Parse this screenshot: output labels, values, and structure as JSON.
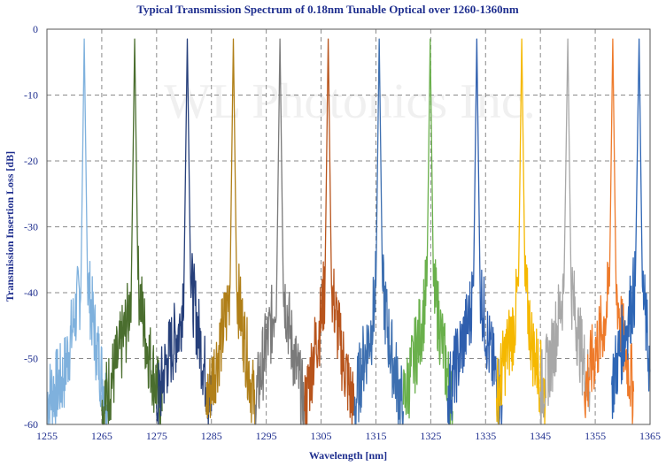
{
  "chart_data": {
    "type": "line",
    "title": "Typical Transmission  Spectrum of 0.18nm Tunable Optical over 1260-1360nm",
    "xlabel": "Wavelength [nm]",
    "ylabel": "Transmission Insertion Loss [dB]",
    "xlim": [
      1255,
      1365
    ],
    "ylim": [
      -60,
      0
    ],
    "xticks": [
      1255,
      1265,
      1275,
      1285,
      1295,
      1305,
      1315,
      1325,
      1335,
      1345,
      1355,
      1365
    ],
    "yticks": [
      0,
      -10,
      -20,
      -30,
      -40,
      -50,
      -60
    ],
    "grid": true,
    "legend": "none",
    "watermark": "WL Photonics Inc.",
    "series": [
      {
        "color": "#7fb1dd",
        "x": [
          1255,
          1258,
          1260,
          1261.2,
          1261.8,
          1262.4,
          1264,
          1266
        ],
        "y": [
          -56,
          -53,
          -44,
          -39,
          -1.5,
          -38,
          -48,
          -57
        ]
      },
      {
        "color": "#4a6e2e",
        "x": [
          1265,
          1268,
          1269.8,
          1270.4,
          1271.0,
          1271.6,
          1273,
          1276
        ],
        "y": [
          -58,
          -50,
          -44,
          -38,
          -1.5,
          -38,
          -47,
          -58
        ]
      },
      {
        "color": "#263f7a",
        "x": [
          1275,
          1277,
          1279.3,
          1280.0,
          1280.6,
          1281.2,
          1283,
          1285
        ],
        "y": [
          -57,
          -50,
          -45,
          -38,
          -1.5,
          -38,
          -48,
          -58
        ]
      },
      {
        "color": "#b07f18",
        "x": [
          1284,
          1286,
          1287.8,
          1288.4,
          1289.0,
          1289.6,
          1291,
          1293
        ],
        "y": [
          -57,
          -50,
          -43,
          -39,
          -1.5,
          -39,
          -47,
          -58
        ]
      },
      {
        "color": "#7a7a7a",
        "x": [
          1293,
          1294.5,
          1296.2,
          1296.9,
          1297.5,
          1298.1,
          1299.5,
          1302
        ],
        "y": [
          -57,
          -50,
          -44,
          -39,
          -1.5,
          -39,
          -47,
          -58
        ]
      },
      {
        "color": "#b8541c",
        "x": [
          1302,
          1303.5,
          1305.0,
          1305.7,
          1306.3,
          1306.9,
          1308.5,
          1311
        ],
        "y": [
          -58,
          -50,
          -44,
          -39,
          -1.5,
          -39,
          -48,
          -58
        ]
      },
      {
        "color": "#3d6fb0",
        "x": [
          1311,
          1312.5,
          1314.3,
          1315.0,
          1315.6,
          1316.2,
          1317.5,
          1320
        ],
        "y": [
          -58,
          -51,
          -45,
          -39,
          -1.5,
          -39,
          -48,
          -58
        ]
      },
      {
        "color": "#6ab04c",
        "x": [
          1320,
          1322,
          1323.5,
          1324.3,
          1324.9,
          1325.5,
          1327,
          1329
        ],
        "y": [
          -57,
          -50,
          -44,
          -39,
          -1.5,
          -39,
          -47,
          -58
        ]
      },
      {
        "color": "#2f5fae",
        "x": [
          1328,
          1330,
          1332.0,
          1332.8,
          1333.4,
          1334.0,
          1335.5,
          1338
        ],
        "y": [
          -56,
          -50,
          -44,
          -39,
          -1.5,
          -39,
          -48,
          -57
        ]
      },
      {
        "color": "#f5b800",
        "x": [
          1337,
          1338.5,
          1340.2,
          1341.0,
          1341.6,
          1342.2,
          1343.5,
          1346
        ],
        "y": [
          -56,
          -50,
          -45,
          -39,
          -1.5,
          -39,
          -48,
          -56
        ]
      },
      {
        "color": "#a8a8a8",
        "x": [
          1345,
          1347,
          1348.5,
          1349.3,
          1350.0,
          1350.6,
          1352,
          1354
        ],
        "y": [
          -55,
          -50,
          -43,
          -39,
          -1.5,
          -39,
          -47,
          -55
        ]
      },
      {
        "color": "#ee7a2a",
        "x": [
          1353,
          1355,
          1356.8,
          1357.6,
          1358.2,
          1358.8,
          1360,
          1362
        ],
        "y": [
          -55,
          -49,
          -44,
          -39,
          -1.5,
          -39,
          -47,
          -55
        ]
      },
      {
        "color": "#2e66b5",
        "x": [
          1358,
          1359.5,
          1361,
          1362.3,
          1363,
          1363.6,
          1364.4,
          1365
        ],
        "y": [
          -54,
          -49,
          -44,
          -39,
          -1.5,
          -39,
          -46,
          -52
        ]
      }
    ]
  }
}
